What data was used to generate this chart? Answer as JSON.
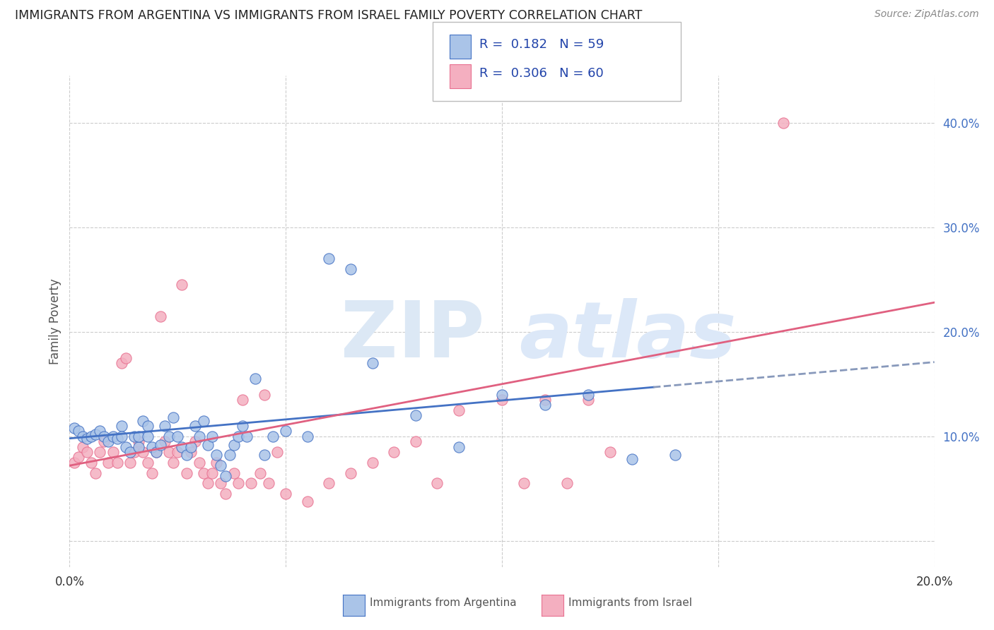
{
  "title": "IMMIGRANTS FROM ARGENTINA VS IMMIGRANTS FROM ISRAEL FAMILY POVERTY CORRELATION CHART",
  "source": "Source: ZipAtlas.com",
  "ylabel": "Family Poverty",
  "xlim": [
    0.0,
    0.2
  ],
  "ylim": [
    -0.025,
    0.445
  ],
  "color_argentina": "#aac4e8",
  "color_israel": "#f4afc0",
  "line_color_argentina": "#4472c4",
  "line_color_israel": "#e06080",
  "line_color_dash": "#8899bb",
  "legend_r_argentina": "R =  0.182",
  "legend_n_argentina": "N = 59",
  "legend_r_israel": "R =  0.306",
  "legend_n_israel": "N = 60",
  "watermark_zip": "ZIP",
  "watermark_atlas": "atlas",
  "argentina_scatter_x": [
    0.001,
    0.002,
    0.003,
    0.004,
    0.005,
    0.006,
    0.007,
    0.008,
    0.009,
    0.01,
    0.011,
    0.012,
    0.012,
    0.013,
    0.014,
    0.015,
    0.016,
    0.016,
    0.017,
    0.018,
    0.018,
    0.019,
    0.02,
    0.021,
    0.022,
    0.023,
    0.024,
    0.025,
    0.026,
    0.027,
    0.028,
    0.029,
    0.03,
    0.031,
    0.032,
    0.033,
    0.034,
    0.035,
    0.036,
    0.037,
    0.038,
    0.039,
    0.04,
    0.041,
    0.043,
    0.045,
    0.047,
    0.05,
    0.055,
    0.06,
    0.065,
    0.07,
    0.08,
    0.09,
    0.1,
    0.11,
    0.12,
    0.13,
    0.14
  ],
  "argentina_scatter_y": [
    0.108,
    0.105,
    0.1,
    0.098,
    0.1,
    0.102,
    0.105,
    0.1,
    0.095,
    0.1,
    0.098,
    0.11,
    0.1,
    0.09,
    0.085,
    0.1,
    0.09,
    0.1,
    0.115,
    0.11,
    0.1,
    0.09,
    0.085,
    0.092,
    0.11,
    0.1,
    0.118,
    0.1,
    0.09,
    0.082,
    0.09,
    0.11,
    0.1,
    0.115,
    0.092,
    0.1,
    0.082,
    0.072,
    0.062,
    0.082,
    0.092,
    0.1,
    0.11,
    0.1,
    0.155,
    0.082,
    0.1,
    0.105,
    0.1,
    0.27,
    0.26,
    0.17,
    0.12,
    0.09,
    0.14,
    0.13,
    0.14,
    0.078,
    0.082
  ],
  "israel_scatter_x": [
    0.001,
    0.002,
    0.003,
    0.004,
    0.005,
    0.006,
    0.007,
    0.008,
    0.009,
    0.01,
    0.011,
    0.012,
    0.013,
    0.014,
    0.015,
    0.016,
    0.017,
    0.018,
    0.019,
    0.02,
    0.021,
    0.022,
    0.023,
    0.024,
    0.025,
    0.026,
    0.027,
    0.028,
    0.029,
    0.03,
    0.031,
    0.032,
    0.033,
    0.034,
    0.035,
    0.036,
    0.038,
    0.039,
    0.04,
    0.042,
    0.044,
    0.045,
    0.046,
    0.048,
    0.05,
    0.055,
    0.06,
    0.065,
    0.07,
    0.075,
    0.08,
    0.085,
    0.09,
    0.1,
    0.105,
    0.11,
    0.115,
    0.12,
    0.125,
    0.165
  ],
  "israel_scatter_y": [
    0.075,
    0.08,
    0.09,
    0.085,
    0.075,
    0.065,
    0.085,
    0.095,
    0.075,
    0.085,
    0.075,
    0.17,
    0.175,
    0.075,
    0.085,
    0.095,
    0.085,
    0.075,
    0.065,
    0.085,
    0.215,
    0.095,
    0.085,
    0.075,
    0.085,
    0.245,
    0.065,
    0.085,
    0.095,
    0.075,
    0.065,
    0.055,
    0.065,
    0.075,
    0.055,
    0.045,
    0.065,
    0.055,
    0.135,
    0.055,
    0.065,
    0.14,
    0.055,
    0.085,
    0.045,
    0.038,
    0.055,
    0.065,
    0.075,
    0.085,
    0.095,
    0.055,
    0.125,
    0.135,
    0.055,
    0.135,
    0.055,
    0.135,
    0.085,
    0.4
  ],
  "trend_arg_x0": 0.0,
  "trend_arg_x1": 0.135,
  "trend_arg_y0": 0.098,
  "trend_arg_y1": 0.147,
  "trend_arg_dash_x0": 0.135,
  "trend_arg_dash_x1": 0.2,
  "trend_arg_dash_y0": 0.147,
  "trend_arg_dash_y1": 0.171,
  "trend_isr_x0": 0.0,
  "trend_isr_x1": 0.2,
  "trend_isr_y0": 0.072,
  "trend_isr_y1": 0.228
}
